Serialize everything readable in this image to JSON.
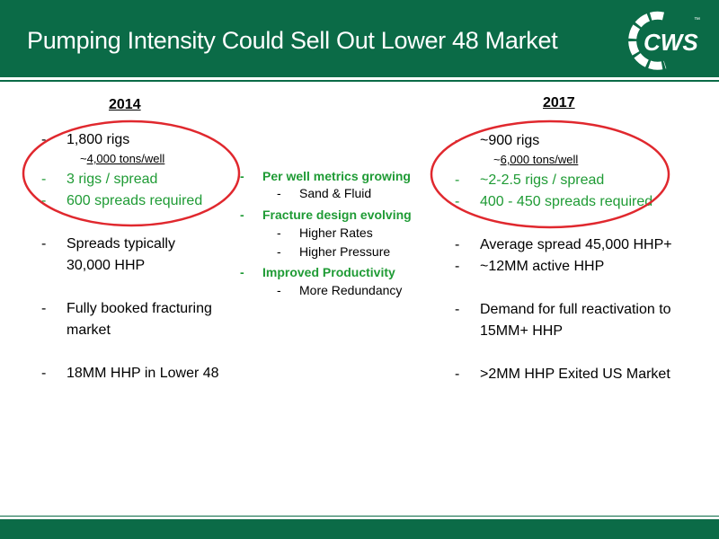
{
  "title": "Pumping Intensity Could Sell Out Lower 48 Market",
  "logo_text": "CWS",
  "logo_mark": "™",
  "dash": "-",
  "left": {
    "heading": "2014",
    "items": [
      {
        "text": "1,800 rigs"
      },
      {
        "sub_prefix": "~",
        "sub_value": "4,000 tons/well"
      },
      {
        "text": "3 rigs / spread"
      },
      {
        "text": "600 spreads required"
      },
      {
        "line1": "Spreads typically",
        "line2": "30,000 HHP"
      },
      {
        "line1": "Fully booked fracturing",
        "line2": "market"
      },
      {
        "text": "18MM HHP in Lower 48"
      }
    ]
  },
  "middle": {
    "items": [
      {
        "text": "Per well metrics growing"
      },
      {
        "text": "Sand & Fluid"
      },
      {
        "text": "Fracture design evolving"
      },
      {
        "text": "Higher Rates"
      },
      {
        "text": "Higher Pressure"
      },
      {
        "text": "Improved Productivity"
      },
      {
        "text": "More Redundancy"
      }
    ]
  },
  "right": {
    "heading": "2017",
    "items": [
      {
        "text": "~900 rigs"
      },
      {
        "sub_prefix": "~",
        "sub_value": "6,000 tons/well"
      },
      {
        "text": "~2-2.5 rigs / spread"
      },
      {
        "text": "400 - 450 spreads required"
      },
      {
        "text": "Average spread 45,000 HHP+"
      },
      {
        "text": "~12MM active HHP"
      },
      {
        "line1": "Demand for full reactivation to",
        "line2": "15MM+ HHP"
      },
      {
        "text": ">2MM HHP Exited US Market"
      }
    ]
  },
  "colors": {
    "brand_green": "#0b6b47",
    "highlight_green": "#1f9b35",
    "oval_red": "#e0282e"
  }
}
